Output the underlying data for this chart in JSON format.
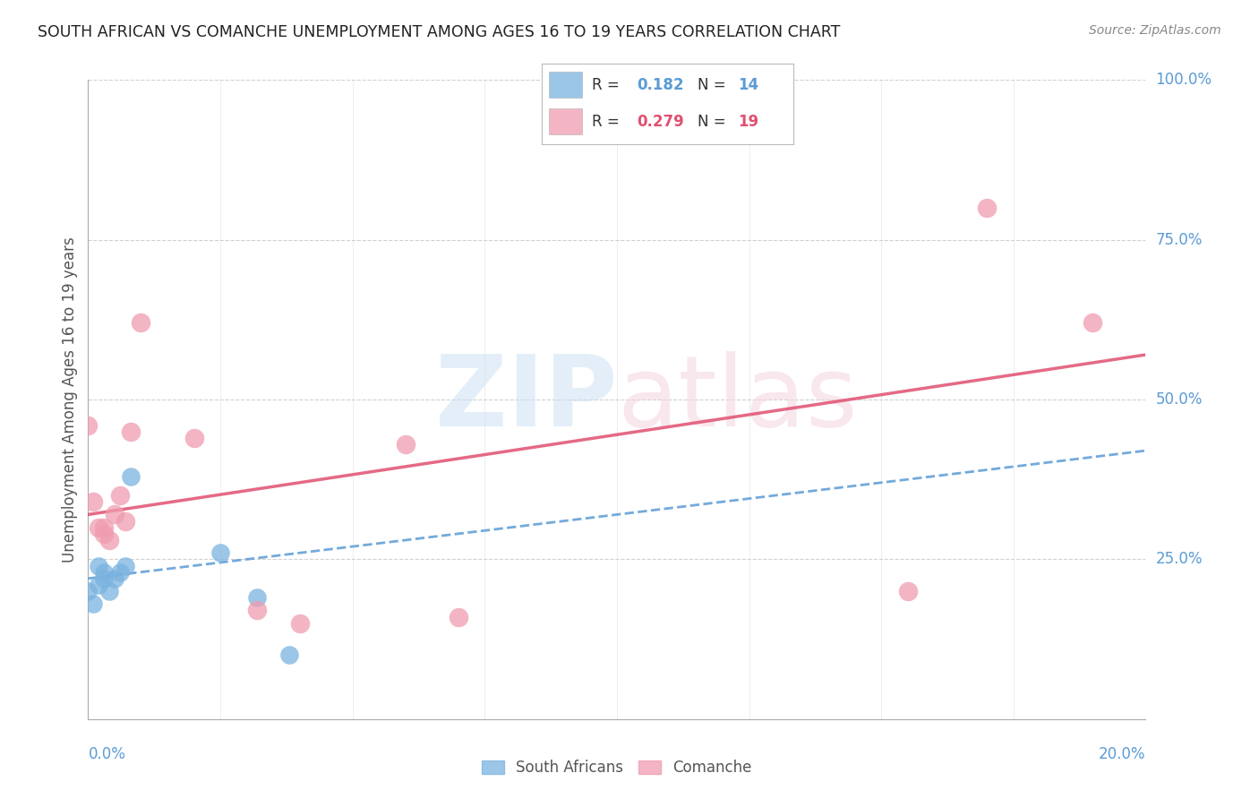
{
  "title": "SOUTH AFRICAN VS COMANCHE UNEMPLOYMENT AMONG AGES 16 TO 19 YEARS CORRELATION CHART",
  "source": "Source: ZipAtlas.com",
  "ylabel": "Unemployment Among Ages 16 to 19 years",
  "xlim": [
    0.0,
    0.2
  ],
  "ylim": [
    0.0,
    1.0
  ],
  "yticks": [
    0.0,
    0.25,
    0.5,
    0.75,
    1.0
  ],
  "ytick_labels": [
    "",
    "25.0%",
    "50.0%",
    "75.0%",
    "100.0%"
  ],
  "south_african_x": [
    0.0,
    0.001,
    0.002,
    0.002,
    0.003,
    0.003,
    0.004,
    0.005,
    0.006,
    0.007,
    0.008,
    0.025,
    0.032,
    0.038
  ],
  "south_african_y": [
    0.2,
    0.18,
    0.21,
    0.24,
    0.23,
    0.22,
    0.2,
    0.22,
    0.23,
    0.24,
    0.38,
    0.26,
    0.19,
    0.1
  ],
  "comanche_x": [
    0.0,
    0.001,
    0.002,
    0.003,
    0.003,
    0.004,
    0.005,
    0.006,
    0.007,
    0.008,
    0.01,
    0.02,
    0.032,
    0.04,
    0.06,
    0.07,
    0.155,
    0.17,
    0.19
  ],
  "comanche_y": [
    0.46,
    0.34,
    0.3,
    0.3,
    0.29,
    0.28,
    0.32,
    0.35,
    0.31,
    0.45,
    0.62,
    0.44,
    0.17,
    0.15,
    0.43,
    0.16,
    0.2,
    0.8,
    0.62
  ],
  "sa_R": 0.182,
  "sa_N": 14,
  "com_R": 0.279,
  "com_N": 19,
  "sa_color": "#7ab3e0",
  "com_color": "#f09cb0",
  "sa_line_color": "#5b9bd5",
  "com_line_color": "#e05070",
  "axis_color": "#5b9bd5",
  "grid_color": "#d0d0d0",
  "com_line_y0": 0.32,
  "com_line_y1": 0.57,
  "sa_line_y0": 0.22,
  "sa_line_y1": 0.42
}
